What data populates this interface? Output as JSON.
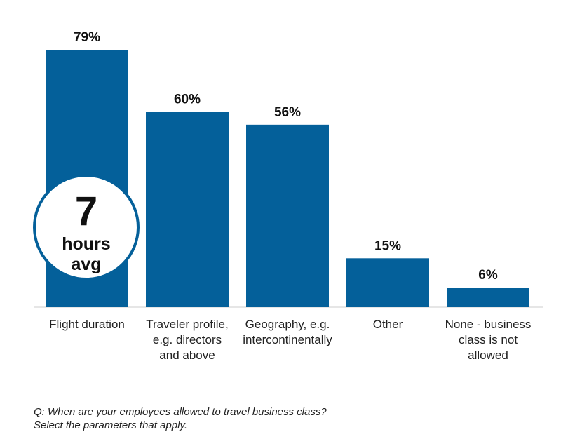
{
  "chart_data": {
    "type": "bar",
    "categories": [
      [
        "Flight duration"
      ],
      [
        "Traveler profile,",
        "e.g. directors",
        "and above"
      ],
      [
        "Geography, e.g.",
        "intercontinentally"
      ],
      [
        "Other"
      ],
      [
        "None - business",
        "class is not",
        "allowed"
      ]
    ],
    "values": [
      79,
      60,
      56,
      15,
      6
    ],
    "value_labels": [
      "79%",
      "60%",
      "56%",
      "15%",
      "6%"
    ],
    "ylim": [
      0,
      79
    ],
    "grid": false,
    "bar_color": "#04609a",
    "badge": {
      "number": "7",
      "line1": "hours",
      "line2": "avg",
      "border_color": "#04609a"
    }
  },
  "question": {
    "line1": "Q: When are your employees allowed to travel business class?",
    "line2": "Select the parameters that apply."
  }
}
